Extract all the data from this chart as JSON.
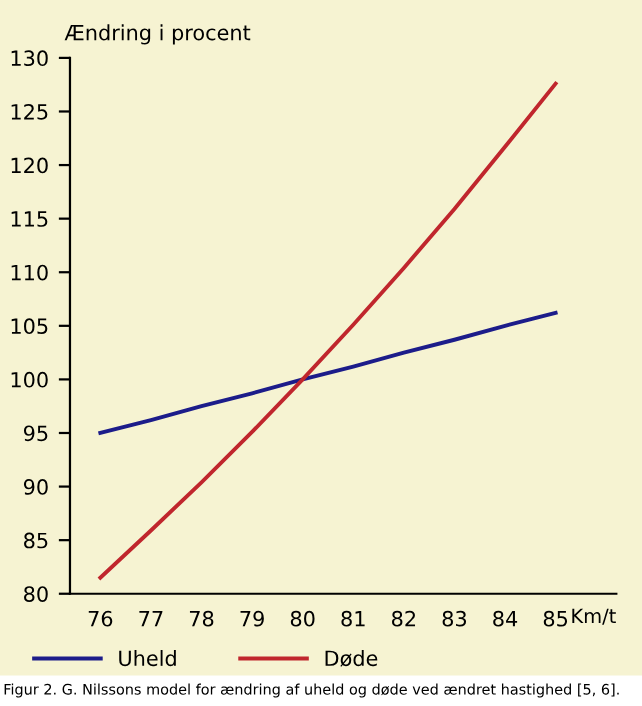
{
  "chart_data": {
    "type": "line",
    "ylabel": "Ændring i procent",
    "xlabel": "Km/t",
    "x": [
      76,
      77,
      78,
      79,
      80,
      81,
      82,
      83,
      84,
      85
    ],
    "series": [
      {
        "name": "Uheld",
        "color": "#1c1c8a",
        "values": [
          95,
          96.2,
          97.5,
          98.7,
          100,
          101.2,
          102.5,
          103.7,
          105,
          106.2
        ]
      },
      {
        "name": "Døde",
        "color": "#c0262d",
        "values": [
          81.5,
          85.9,
          90.4,
          95.1,
          100,
          105.1,
          110.4,
          115.9,
          121.7,
          127.6
        ]
      }
    ],
    "xlim": [
      75.4,
      86.2
    ],
    "xticks": [
      76,
      77,
      78,
      79,
      80,
      81,
      82,
      83,
      84,
      85
    ],
    "ylim": [
      80,
      130
    ],
    "yticks": [
      80,
      85,
      90,
      95,
      100,
      105,
      110,
      115,
      120,
      125,
      130
    ],
    "grid": false,
    "legend": "bottom left",
    "marker": "none",
    "line_style": "solid",
    "annotations": [
      "Figur 2. G. Nilssons model for ændring af uheld og døde ved ændret hastighed [5, 6]."
    ]
  }
}
